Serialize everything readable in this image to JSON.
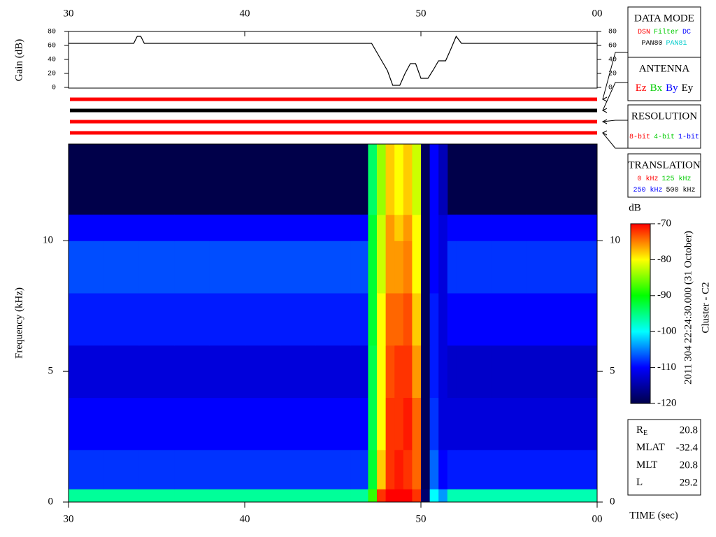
{
  "chart_data": [
    {
      "type": "line",
      "ylabel": "Gain (dB)",
      "x": [
        30,
        33.7,
        33.9,
        34.1,
        34.3,
        47.2,
        47.5,
        47.8,
        48.1,
        48.4,
        48.8,
        49.1,
        49.4,
        49.7,
        50.0,
        50.4,
        50.7,
        51.0,
        51.4,
        51.7,
        52.0,
        52.3,
        60
      ],
      "values": [
        63,
        63,
        73,
        73,
        63,
        63,
        50,
        37,
        24,
        3,
        3,
        20,
        34,
        34,
        13,
        13,
        25,
        38,
        38,
        55,
        73,
        63,
        63
      ],
      "color": "#000000",
      "xlim": [
        30,
        60
      ],
      "xticks": [
        30,
        40,
        50,
        {
          "value": 60,
          "label": "00"
        }
      ],
      "ylim": [
        0,
        80
      ],
      "yticks": [
        0,
        20,
        40,
        60,
        80
      ]
    },
    {
      "type": "heatmap",
      "xlabel": "TIME (sec)",
      "ylabel": "Frequency (kHz)",
      "xbins": [
        30,
        32,
        34,
        36,
        38,
        40,
        42,
        44,
        46,
        47,
        47.5,
        48,
        48.5,
        49,
        49.5,
        50,
        50.5,
        51,
        51.5,
        52,
        54,
        56,
        58,
        60
      ],
      "ybins": [
        0,
        0.5,
        2,
        4,
        6,
        8,
        10,
        11,
        13.7
      ],
      "z": [
        [
          -96,
          -96,
          -96,
          -96,
          -96,
          -96,
          -96,
          -96,
          -96,
          -88,
          -72,
          -70,
          -70,
          -70,
          -72,
          -118,
          -100,
          -104,
          -97,
          -97,
          -97,
          -97,
          -97
        ],
        [
          -108,
          -108,
          -108,
          -108,
          -108,
          -108,
          -108,
          -108,
          -108,
          -92,
          -78,
          -72,
          -71,
          -72,
          -74,
          -119,
          -106,
          -110,
          -109,
          -109,
          -109,
          -109,
          -109
        ],
        [
          -110,
          -110,
          -110,
          -110,
          -110,
          -110,
          -110,
          -110,
          -110,
          -93,
          -80,
          -72,
          -72,
          -71,
          -74,
          -119,
          -108,
          -112,
          -112,
          -112,
          -112,
          -112,
          -112
        ],
        [
          -112,
          -112,
          -112,
          -112,
          -112,
          -112,
          -112,
          -112,
          -112,
          -93,
          -80,
          -73,
          -72,
          -72,
          -76,
          -119,
          -109,
          -112,
          -113,
          -113,
          -113,
          -113,
          -113
        ],
        [
          -109,
          -109,
          -109,
          -109,
          -109,
          -109,
          -109,
          -109,
          -109,
          -92,
          -80,
          -74,
          -74,
          -73,
          -78,
          -119,
          -109,
          -112,
          -110,
          -110,
          -110,
          -110,
          -110
        ],
        [
          -107,
          -107,
          -107,
          -107,
          -107,
          -107,
          -107,
          -107,
          -107,
          -92,
          -82,
          -76,
          -76,
          -75,
          -80,
          -119,
          -110,
          -112,
          -108,
          -108,
          -108,
          -108,
          -108
        ],
        [
          -110,
          -110,
          -110,
          -110,
          -110,
          -110,
          -110,
          -110,
          -110,
          -92,
          -82,
          -76,
          -78,
          -76,
          -80,
          -119,
          -110,
          -112,
          -110,
          -110,
          -110,
          -110,
          -110
        ],
        [
          null,
          null,
          null,
          null,
          null,
          null,
          null,
          null,
          null,
          -94,
          -84,
          -78,
          -80,
          -78,
          -82,
          -119,
          -110,
          -114,
          null,
          null,
          null,
          null,
          null
        ]
      ],
      "background": "#00004a",
      "xlim": [
        30,
        60
      ],
      "xticks": [
        30,
        40,
        50,
        {
          "value": 60,
          "label": "00"
        }
      ],
      "ylim": [
        0,
        13.7
      ],
      "yticks": [
        0,
        5,
        10
      ],
      "colorbar": {
        "label": "dB",
        "zlim": [
          -120,
          -70
        ],
        "zticks": [
          -70,
          -80,
          -90,
          -100,
          -110,
          -120
        ],
        "colormap": [
          "#00004a",
          "#0000ff",
          "#00ffff",
          "#00ff00",
          "#ffff00",
          "#ff0000"
        ]
      }
    }
  ],
  "panels": [
    {
      "title": "DATA MODE",
      "bar_color": "#ff0000",
      "rows": [
        [
          {
            "text": "DSN",
            "color": "#ff0000"
          },
          {
            "text": "Filter",
            "color": "#00cc00"
          },
          {
            "text": "DC",
            "color": "#0000ff"
          }
        ],
        [
          {
            "text": "PAN80",
            "color": "#000000"
          },
          {
            "text": "PAN81",
            "color": "#00cccc"
          }
        ]
      ]
    },
    {
      "title": "ANTENNA",
      "bar_color": "#000000",
      "rows": [
        [
          {
            "text": "Ez",
            "color": "#ff0000"
          },
          {
            "text": "Bx",
            "color": "#00cc00"
          },
          {
            "text": "By",
            "color": "#0000ff"
          },
          {
            "text": "Ey",
            "color": "#000000"
          }
        ]
      ]
    },
    {
      "title": "RESOLUTION",
      "bar_color": "#ff0000",
      "rows": [
        [
          {
            "text": "8-bit",
            "color": "#ff0000"
          },
          {
            "text": "4-bit",
            "color": "#00cc00"
          },
          {
            "text": "1-bit",
            "color": "#0000ff"
          }
        ]
      ]
    },
    {
      "title": "TRANSLATION",
      "bar_color": "#ff0000",
      "rows": [
        [
          {
            "text": "0 kHz",
            "color": "#ff0000"
          },
          {
            "text": "125 kHz",
            "color": "#00cc00"
          }
        ],
        [
          {
            "text": "250 kHz",
            "color": "#0000ff"
          },
          {
            "text": "500 kHz",
            "color": "#000000"
          }
        ]
      ]
    }
  ],
  "info": [
    {
      "label": "R",
      "sub": "E",
      "value": 20.8
    },
    {
      "label": "MLAT",
      "value": -32.4
    },
    {
      "label": "MLT",
      "value": 20.8
    },
    {
      "label": "L",
      "value": 29.2
    }
  ],
  "stamp": {
    "date": "2011 304 22:24:30.000 (31 October)",
    "spacecraft": "Cluster - C2"
  }
}
